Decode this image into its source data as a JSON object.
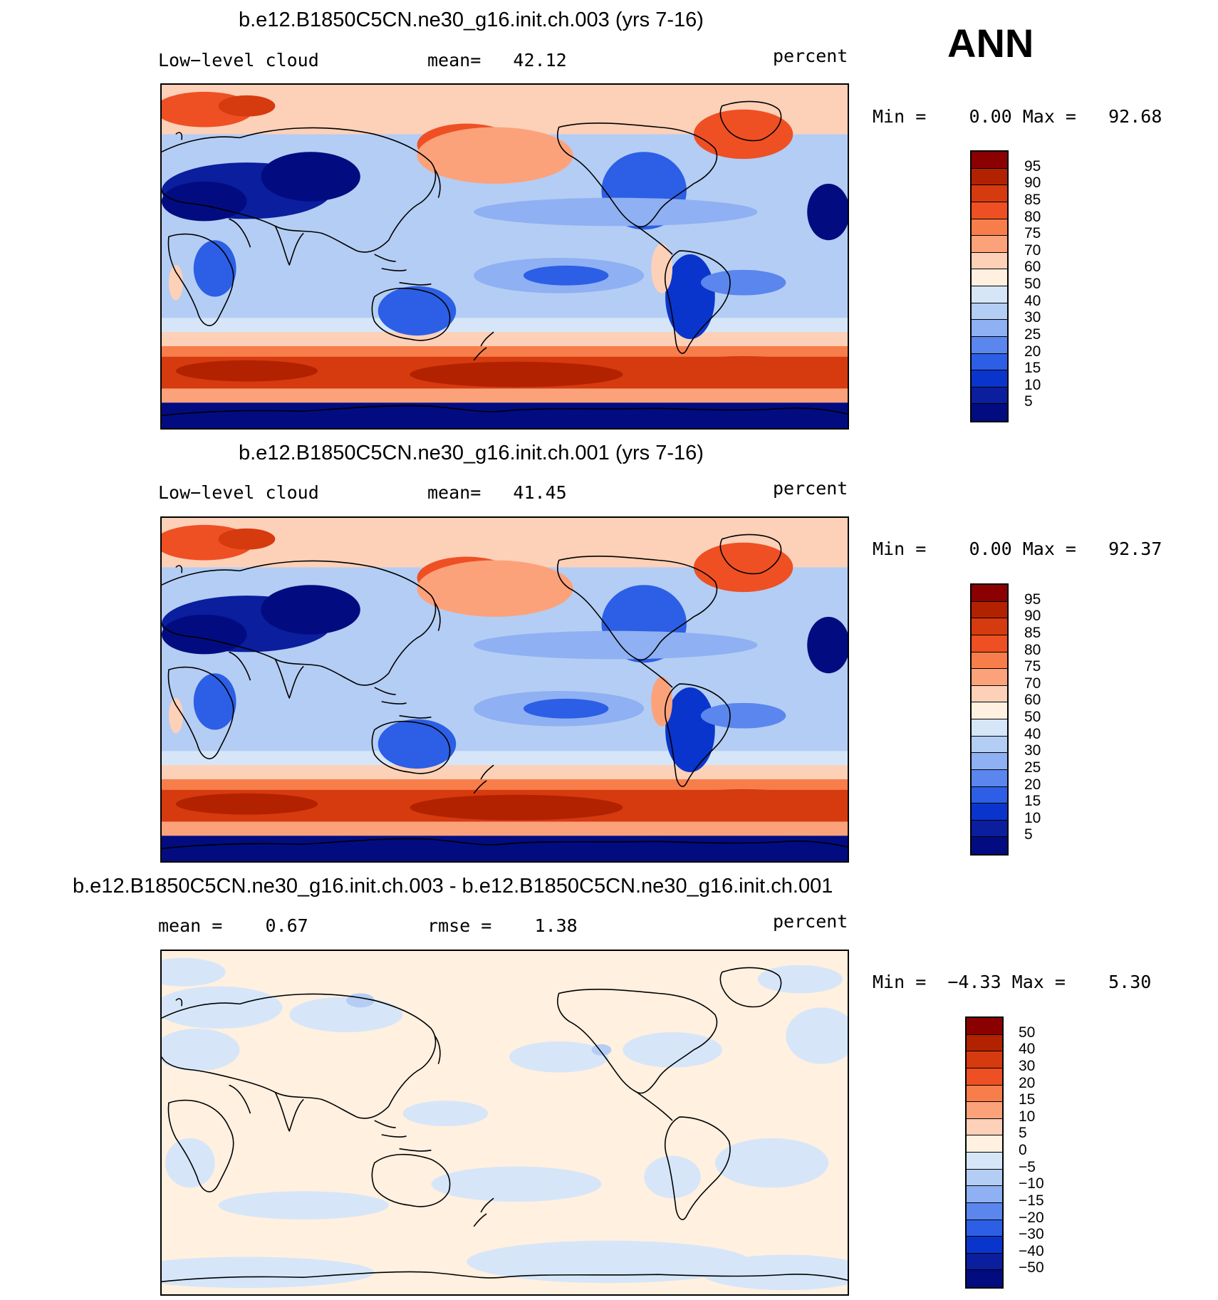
{
  "season": "ANN",
  "panels": [
    {
      "title": "b.e12.B1850C5CN.ne30_g16.init.ch.003 (yrs 7-16)",
      "left_label": "Low−level cloud",
      "mid_label": "mean=   42.12",
      "right_label": "percent",
      "minmax": "Min =    0.00 Max =   92.68",
      "map_kind": "field",
      "colorbar_labels": [
        "95",
        "90",
        "85",
        "80",
        "75",
        "70",
        "60",
        "50",
        "40",
        "30",
        "25",
        "20",
        "15",
        "10",
        "5"
      ]
    },
    {
      "title": "b.e12.B1850C5CN.ne30_g16.init.ch.001 (yrs 7-16)",
      "left_label": "Low−level cloud",
      "mid_label": "mean=   41.45",
      "right_label": "percent",
      "minmax": "Min =    0.00 Max =   92.37",
      "map_kind": "field",
      "colorbar_labels": [
        "95",
        "90",
        "85",
        "80",
        "75",
        "70",
        "60",
        "50",
        "40",
        "30",
        "25",
        "20",
        "15",
        "10",
        "5"
      ]
    },
    {
      "title": "b.e12.B1850C5CN.ne30_g16.init.ch.003 - b.e12.B1850C5CN.ne30_g16.init.ch.001",
      "left_label": "mean =    0.67",
      "mid_label": "rmse =    1.38",
      "right_label": "percent",
      "minmax": "Min =  −4.33 Max =    5.30",
      "map_kind": "diff",
      "colorbar_labels": [
        "50",
        "40",
        "30",
        "20",
        "15",
        "10",
        "5",
        "0",
        "−5",
        "−10",
        "−15",
        "−20",
        "−30",
        "−40",
        "−50"
      ]
    }
  ],
  "colors": {
    "palette": [
      "#8b0000",
      "#b22200",
      "#d63a0f",
      "#ee5024",
      "#f77e4b",
      "#fca27a",
      "#fdd0b8",
      "#fff0e0",
      "#d6e6f8",
      "#b4cdf4",
      "#8fb0f2",
      "#5a86ee",
      "#2c5fe5",
      "#0a35cc",
      "#0a1e9e",
      "#020c80"
    ]
  }
}
